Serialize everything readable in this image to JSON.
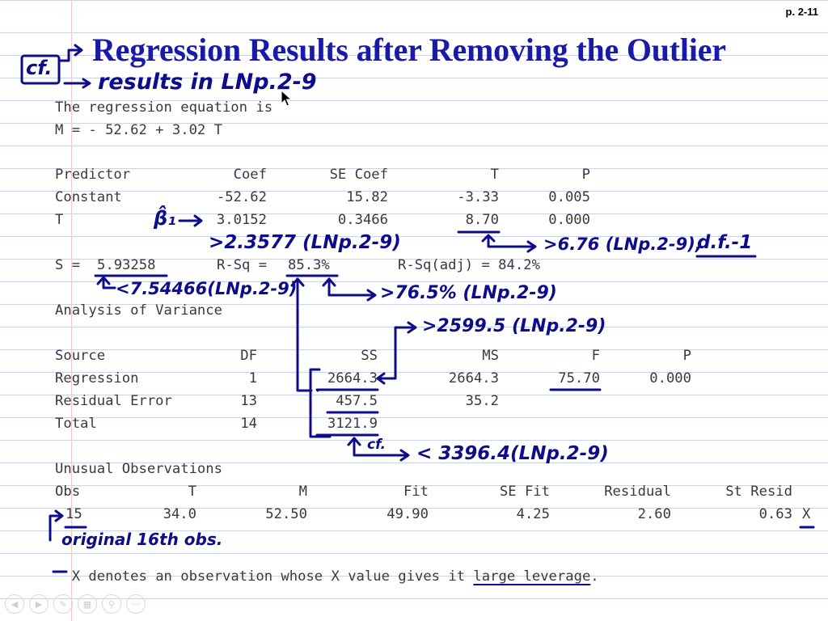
{
  "page_number": "p. 2-11",
  "title": "Regression Results after Removing the Outlier",
  "handwriting": {
    "cf_box": "cf.",
    "results_note": "results in LNp.2-9",
    "beta_hat": "β̂₁",
    "coef_note": ">2.3577 (LNp.2-9)",
    "t_note": ">6.76 (LNp.2-9),",
    "df_note": "d.f.-1",
    "s_note": "<7.54466(LNp.2-9)",
    "rsq_note": ">76.5% (LNp.2-9)",
    "ss_reg_note": ">2599.5 (LNp.2-9)",
    "cf_small": "cf.",
    "ss_total_note": "< 3396.4(LNp.2-9)",
    "obs_note": "original 16th obs."
  },
  "equation": {
    "line1": "The regression equation is",
    "line2": "M = - 52.62 + 3.02 T"
  },
  "coef_table": {
    "headers": [
      "Predictor",
      "Coef",
      "SE Coef",
      "T",
      "P"
    ],
    "rows": [
      [
        "Constant",
        "-52.62",
        "15.82",
        "-3.33",
        "0.005"
      ],
      [
        "T",
        "3.0152",
        "0.3466",
        "8.70",
        "0.000"
      ]
    ]
  },
  "fit_stats": {
    "s_label": "S = ",
    "s_value": "5.93258",
    "rsq_label": "R-Sq = ",
    "rsq_value": "85.3%",
    "rsq_adj": "R-Sq(adj) = 84.2%"
  },
  "anova": {
    "heading": "Analysis of Variance",
    "headers": [
      "Source",
      "DF",
      "SS",
      "MS",
      "F",
      "P"
    ],
    "rows": [
      [
        "Regression",
        "1",
        "2664.3",
        "2664.3",
        "75.70",
        "0.000"
      ],
      [
        "Residual Error",
        "13",
        "457.5",
        "35.2",
        "",
        ""
      ],
      [
        "Total",
        "14",
        "3121.9",
        "",
        "",
        ""
      ]
    ]
  },
  "unusual": {
    "heading": "Unusual Observations",
    "headers": [
      "Obs",
      "T",
      "M",
      "Fit",
      "SE Fit",
      "Residual",
      "St Resid"
    ],
    "row": [
      "15",
      "34.0",
      "52.50",
      "49.90",
      "4.25",
      "2.60",
      "0.63",
      "X"
    ]
  },
  "footnote": {
    "x": "X",
    "text1": " denotes an observation whose X value gives it ",
    "underlined": "large leverage",
    "period": "."
  },
  "toolbar": [
    "back-icon",
    "forward-icon",
    "pen-icon",
    "pages-icon",
    "zoom-icon",
    "more-icon"
  ]
}
